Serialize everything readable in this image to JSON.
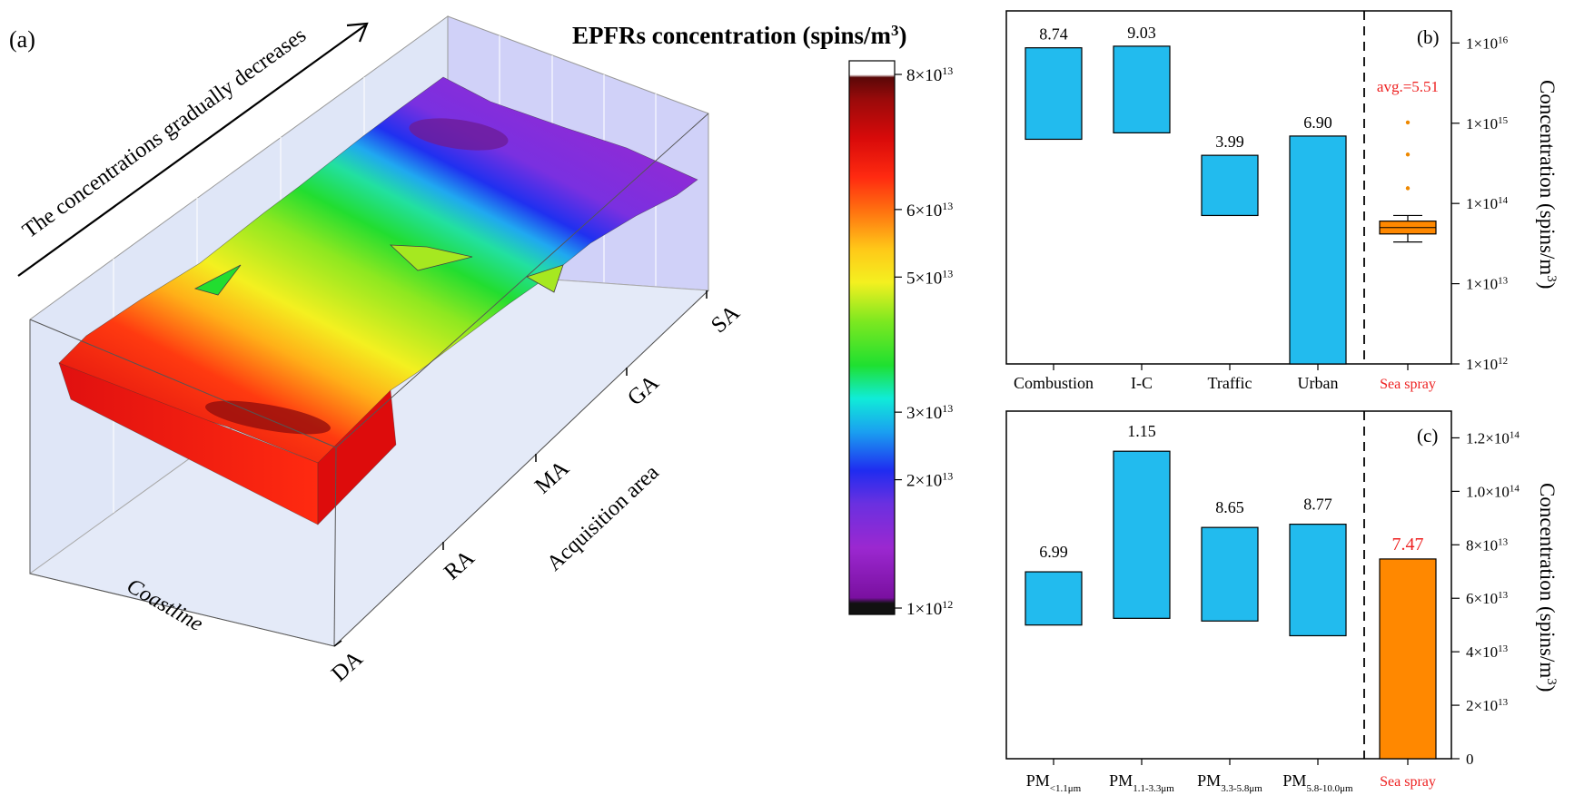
{
  "chart_data": [
    {
      "panel": "(a)",
      "type": "heatmap",
      "title_prefix": "EPFRs concentration (spins/m",
      "title_sup": "3",
      "title_suffix": ")",
      "trend_text": "The concentrations gradually decreases",
      "axis_label_along": "Acquisition area",
      "axis_label_front": "Coastline",
      "areas": [
        "DA",
        "RA",
        "MA",
        "GA",
        "SA"
      ],
      "colorbar": {
        "min": 1000000000000.0,
        "max": 80000000000000.0,
        "ticks": [
          {
            "value": 80000000000000.0,
            "mant": "8",
            "exp": "13"
          },
          {
            "value": 60000000000000.0,
            "mant": "6",
            "exp": "13"
          },
          {
            "value": 50000000000000.0,
            "mant": "5",
            "exp": "13"
          },
          {
            "value": 30000000000000.0,
            "mant": "3",
            "exp": "13"
          },
          {
            "value": 20000000000000.0,
            "mant": "2",
            "exp": "13"
          },
          {
            "value": 1000000000000.0,
            "mant": "1",
            "exp": "12"
          }
        ]
      },
      "description_levels": "Concentration decreases from DA (coastline, ~7e13) to SA (~1e13)"
    },
    {
      "panel": "(b)",
      "type": "bar",
      "scale": "log",
      "ylabel_prefix": "Concentration (spins/m",
      "ylabel_sup": "3",
      "ylabel_suffix": ")",
      "ylim_exp": [
        12,
        16.4
      ],
      "yticks": [
        {
          "exp": "16",
          "mant": "1"
        },
        {
          "exp": "15",
          "mant": "1"
        },
        {
          "exp": "14",
          "mant": "1"
        },
        {
          "exp": "13",
          "mant": "1"
        },
        {
          "exp": "12",
          "mant": "1"
        }
      ],
      "bars": [
        {
          "category": "Combustion",
          "label": "8.74",
          "low_exp": 14.8,
          "high_exp": 15.94
        },
        {
          "category": "I-C",
          "label": "9.03",
          "low_exp": 14.88,
          "high_exp": 15.96
        },
        {
          "category": "Traffic",
          "label": "3.99",
          "low_exp": 13.85,
          "high_exp": 14.6
        },
        {
          "category": "Urban",
          "label": "6.90",
          "low_exp": 12.0,
          "high_exp": 14.84
        }
      ],
      "boxplot": {
        "category": "Sea spray",
        "label": "avg.=5.51",
        "whisker_low_exp": 13.52,
        "q1_exp": 13.62,
        "median_exp": 13.7,
        "q3_exp": 13.78,
        "whisker_high_exp": 13.85,
        "outliers_exp": [
          14.19,
          14.61,
          15.01
        ]
      }
    },
    {
      "panel": "(c)",
      "type": "bar",
      "scale": "linear",
      "ylabel_prefix": "Concentration (spins/m",
      "ylabel_sup": "3",
      "ylabel_suffix": ")",
      "ylim": [
        0,
        130000000000000.0
      ],
      "yticks": [
        {
          "value": 120000000000000.0,
          "mant": "1.2",
          "exp": "14"
        },
        {
          "value": 100000000000000.0,
          "mant": "1.0",
          "exp": "14"
        },
        {
          "value": 80000000000000.0,
          "mant": "8",
          "exp": "13"
        },
        {
          "value": 60000000000000.0,
          "mant": "6",
          "exp": "13"
        },
        {
          "value": 40000000000000.0,
          "mant": "4",
          "exp": "13"
        },
        {
          "value": 20000000000000.0,
          "mant": "2",
          "exp": "13"
        },
        {
          "value": 0,
          "mant": "0",
          "exp": ""
        }
      ],
      "bars": [
        {
          "base": "PM",
          "sub": "<1.1μm",
          "label": "6.99",
          "low": 50000000000000.0,
          "high": 69900000000000.0,
          "color": "#22bbee"
        },
        {
          "base": "PM",
          "sub": "1.1-3.3μm",
          "label": "1.15",
          "low": 52500000000000.0,
          "high": 115000000000000.0,
          "color": "#22bbee"
        },
        {
          "base": "PM",
          "sub": "3.3-5.8μm",
          "label": "8.65",
          "low": 51500000000000.0,
          "high": 86500000000000.0,
          "color": "#22bbee"
        },
        {
          "base": "PM",
          "sub": "5.8-10.0μm",
          "label": "8.77",
          "low": 46000000000000.0,
          "high": 87700000000000.0,
          "color": "#22bbee"
        }
      ],
      "sea_bar": {
        "category": "Sea spray",
        "label": "7.47",
        "low": 0,
        "high": 74700000000000.0,
        "color": "#ff8800"
      }
    }
  ],
  "colors": {
    "bar_fill": "#22bbee",
    "sea_fill": "#ff8800",
    "sea_text": "#ee2222",
    "outlier": "#ee8800"
  }
}
